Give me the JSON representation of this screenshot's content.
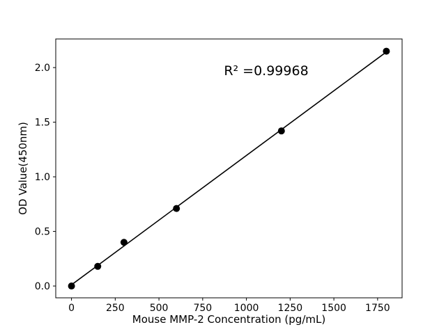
{
  "figure": {
    "background_color": "#ffffff"
  },
  "chart_data": {
    "type": "scatter",
    "title": "",
    "xlabel": "Mouse MMP-2 Concentration (pg/mL)",
    "ylabel": "OD Value(450nm)",
    "annotation": "R² =0.99968",
    "x": [
      0,
      150,
      300,
      600,
      1200,
      1800
    ],
    "y": [
      0.0,
      0.18,
      0.4,
      0.71,
      1.42,
      2.15
    ],
    "fit_line": {
      "x": [
        0,
        1800
      ],
      "y": [
        0.011,
        2.143
      ],
      "slope": 0.001184,
      "intercept": 0.011
    },
    "xticks": {
      "values": [
        0,
        250,
        500,
        750,
        1000,
        1250,
        1500,
        1750
      ],
      "labels": [
        "0",
        "250",
        "500",
        "750",
        "1000",
        "1250",
        "1500",
        "1750"
      ]
    },
    "yticks": {
      "values": [
        0.0,
        0.5,
        1.0,
        1.5,
        2.0
      ],
      "labels": [
        "0.0",
        "0.5",
        "1.0",
        "1.5",
        "2.0"
      ]
    },
    "xlim": [
      -90,
      1890
    ],
    "ylim": [
      -0.108,
      2.262
    ],
    "grid": false,
    "legend_position": "none",
    "marker_color": "#000000",
    "line_color": "#000000",
    "axis_color": "#000000"
  }
}
